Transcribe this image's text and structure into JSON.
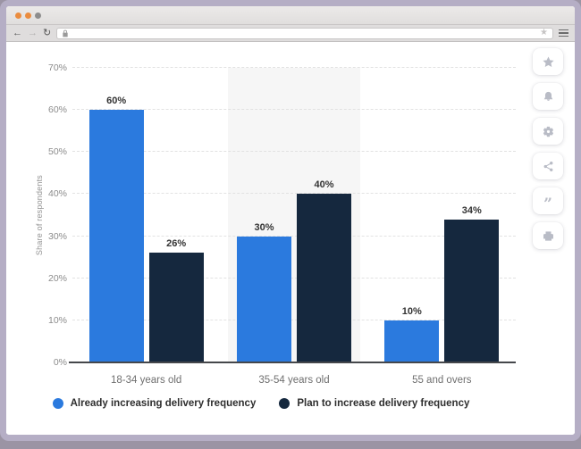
{
  "browser": {
    "traffic_light_colors": [
      "#ea8c3f",
      "#ea8c3f",
      "#8d8d8d"
    ],
    "back_glyph": "←",
    "forward_glyph": "→",
    "refresh_glyph": "↻",
    "url": {
      "value": "",
      "placeholder": ""
    },
    "bookmark_star_glyph": "★",
    "icons": [
      "back-arrow",
      "forward-arrow",
      "refresh",
      "lock",
      "bookmark-star",
      "menu"
    ]
  },
  "sidebar": {
    "icons": [
      "star",
      "bell",
      "gear",
      "share",
      "quote",
      "printer"
    ],
    "quote_glyph": "”"
  },
  "chart_data": {
    "type": "bar",
    "categories": [
      "18-34 years old",
      "35-54 years old",
      "55 and overs"
    ],
    "series": [
      {
        "name": "Already increasing delivery frequency",
        "color": "#2b7ade",
        "values": [
          60,
          30,
          10
        ]
      },
      {
        "name": "Plan to increase delivery frequency",
        "color": "#15283e",
        "values": [
          26,
          40,
          34
        ]
      }
    ],
    "xlabel": "",
    "ylabel": "Share of respondents",
    "ylim": [
      0,
      70
    ],
    "ytick_step": 10,
    "tick_suffix": "%",
    "value_label_suffix": "%",
    "grid": true,
    "gridline_style": "dashed",
    "legend_position": "bottom",
    "highlighted_category_index": 1,
    "highlight_color": "#f6f6f6",
    "axis_color": "#45474b"
  }
}
